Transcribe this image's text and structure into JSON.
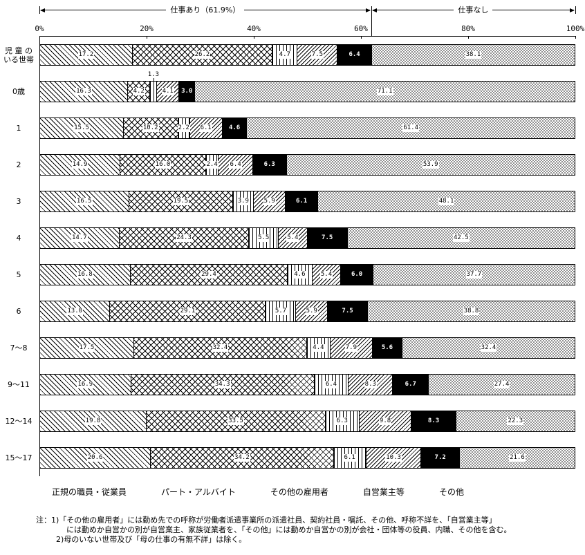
{
  "header": {
    "work_yes_label": "仕事あり（61.9%）",
    "work_no_label": "仕事なし"
  },
  "chart_data": {
    "type": "bar",
    "orientation": "horizontal",
    "stacked": true,
    "unit": "%",
    "xlim": [
      0,
      100
    ],
    "x_ticks": [
      {
        "label": "0%",
        "pct": 0
      },
      {
        "label": "20%",
        "pct": 20
      },
      {
        "label": "40%",
        "pct": 40
      },
      {
        "label": "60%",
        "pct": 60
      },
      {
        "label": "80%",
        "pct": 80
      },
      {
        "label": "100%",
        "pct": 100
      }
    ],
    "categories": [
      "児 童 の\nいる世帯",
      "0歳",
      "1",
      "2",
      "3",
      "4",
      "5",
      "6",
      "7〜8",
      "9〜11",
      "12〜14",
      "15〜17"
    ],
    "series": [
      {
        "name": "正規の職員・従業員",
        "values": [
          17.2,
          16.3,
          15.5,
          14.9,
          16.5,
          14.7,
          16.8,
          13.0,
          17.5,
          16.9,
          19.8,
          20.6
        ]
      },
      {
        "name": "パート・アルバイト",
        "values": [
          26.2,
          4.2,
          10.2,
          16.0,
          19.5,
          24.3,
          29.4,
          29.1,
          32.4,
          34.3,
          33.5,
          34.2
        ]
      },
      {
        "name": "その他の雇用者",
        "values": [
          4.7,
          1.3,
          2.2,
          2.4,
          3.9,
          5.5,
          4.6,
          5.7,
          4.4,
          6.4,
          6.3,
          6.1
        ]
      },
      {
        "name": "自営業主等",
        "values": [
          7.5,
          4.1,
          6.1,
          6.4,
          5.9,
          5.4,
          5.4,
          5.9,
          7.9,
          8.3,
          9.8,
          10.3
        ]
      },
      {
        "name": "その他",
        "values": [
          6.4,
          3.0,
          4.6,
          6.3,
          6.1,
          7.5,
          6.0,
          7.5,
          5.6,
          6.7,
          8.3,
          7.2
        ]
      },
      {
        "name": "仕事なし",
        "values": [
          38.1,
          71.1,
          61.4,
          53.9,
          48.1,
          42.5,
          37.7,
          38.8,
          32.4,
          27.4,
          22.3,
          21.6
        ]
      }
    ],
    "annotations": {
      "work_yes_pct": 61.9,
      "work_no_pct": 38.1
    },
    "special_label": {
      "row": 1,
      "series": 2,
      "text": "1.3",
      "pct": 21.2
    }
  },
  "legend": {
    "items": [
      "正規の職員・従業員",
      "パート・アルバイト",
      "その他の雇用者",
      "自営業主等",
      "その他"
    ]
  },
  "notes": {
    "lines": [
      "注：1)「その他の雇用者」には勤め先での呼称が労働者派遣事業所の派遣社員、契約社員・嘱託、その他、呼称不詳を、「自営業主等」",
      "には勤めか自営かの別が自営業主、家族従業者を、「その他」には勤めか自営かの別が会社・団体等の役員、内職、その他を含む。",
      "2)母のいない世帯及び「母の仕事の有無不詳」は除く。"
    ]
  }
}
